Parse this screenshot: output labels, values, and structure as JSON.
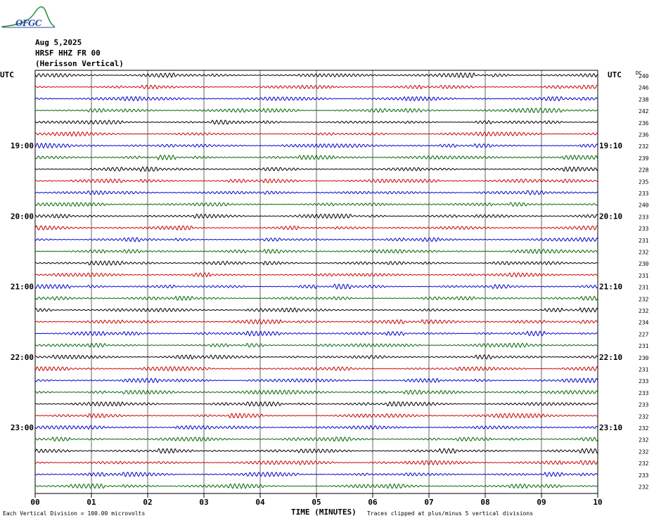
{
  "header": {
    "date": "Aug 5,2025",
    "station": "HRSF HHZ FR 00",
    "name": "(Herisson Vertical)"
  },
  "logo": {
    "text": "OFGC",
    "icon": "wave-logo-icon"
  },
  "chart_data": {
    "type": "line",
    "title": "",
    "xlabel": "TIME (MINUTES)",
    "ylabel": "",
    "xlim": [
      0,
      10
    ],
    "x_ticks": [
      "00",
      "01",
      "02",
      "03",
      "04",
      "05",
      "06",
      "07",
      "08",
      "09",
      "10"
    ],
    "left_axis_label": "UTC",
    "right_axis_label": "UTC",
    "dc_label": "DC",
    "left_time_labels": [
      {
        "row": 6,
        "label": "19:00"
      },
      {
        "row": 12,
        "label": "20:00"
      },
      {
        "row": 18,
        "label": "21:00"
      },
      {
        "row": 24,
        "label": "22:00"
      },
      {
        "row": 30,
        "label": "23:00"
      }
    ],
    "right_time_labels": [
      {
        "row": 6,
        "label": "19:10"
      },
      {
        "row": 12,
        "label": "20:10"
      },
      {
        "row": 18,
        "label": "21:10"
      },
      {
        "row": 24,
        "label": "22:10"
      },
      {
        "row": 30,
        "label": "23:10"
      }
    ],
    "trace_colors": [
      "#000000",
      "#cc0000",
      "#0000cc",
      "#006600"
    ],
    "dc_values": [
      "240",
      "246",
      "238",
      "242",
      "236",
      "236",
      "232",
      "239",
      "228",
      "235",
      "233",
      "240",
      "233",
      "233",
      "231",
      "232",
      "230",
      "231",
      "231",
      "232",
      "232",
      "234",
      "227",
      "231",
      "230",
      "231",
      "233",
      "233",
      "233",
      "232",
      "232",
      "232",
      "232",
      "232",
      "233",
      "232"
    ],
    "clipping": "plus/minus 5 vertical divisions"
  },
  "footer": {
    "vertical_division": "Each Vertical Division =  100.00 microvolts",
    "clip_note": "Traces clipped at plus/minus 5 vertical divisions"
  }
}
